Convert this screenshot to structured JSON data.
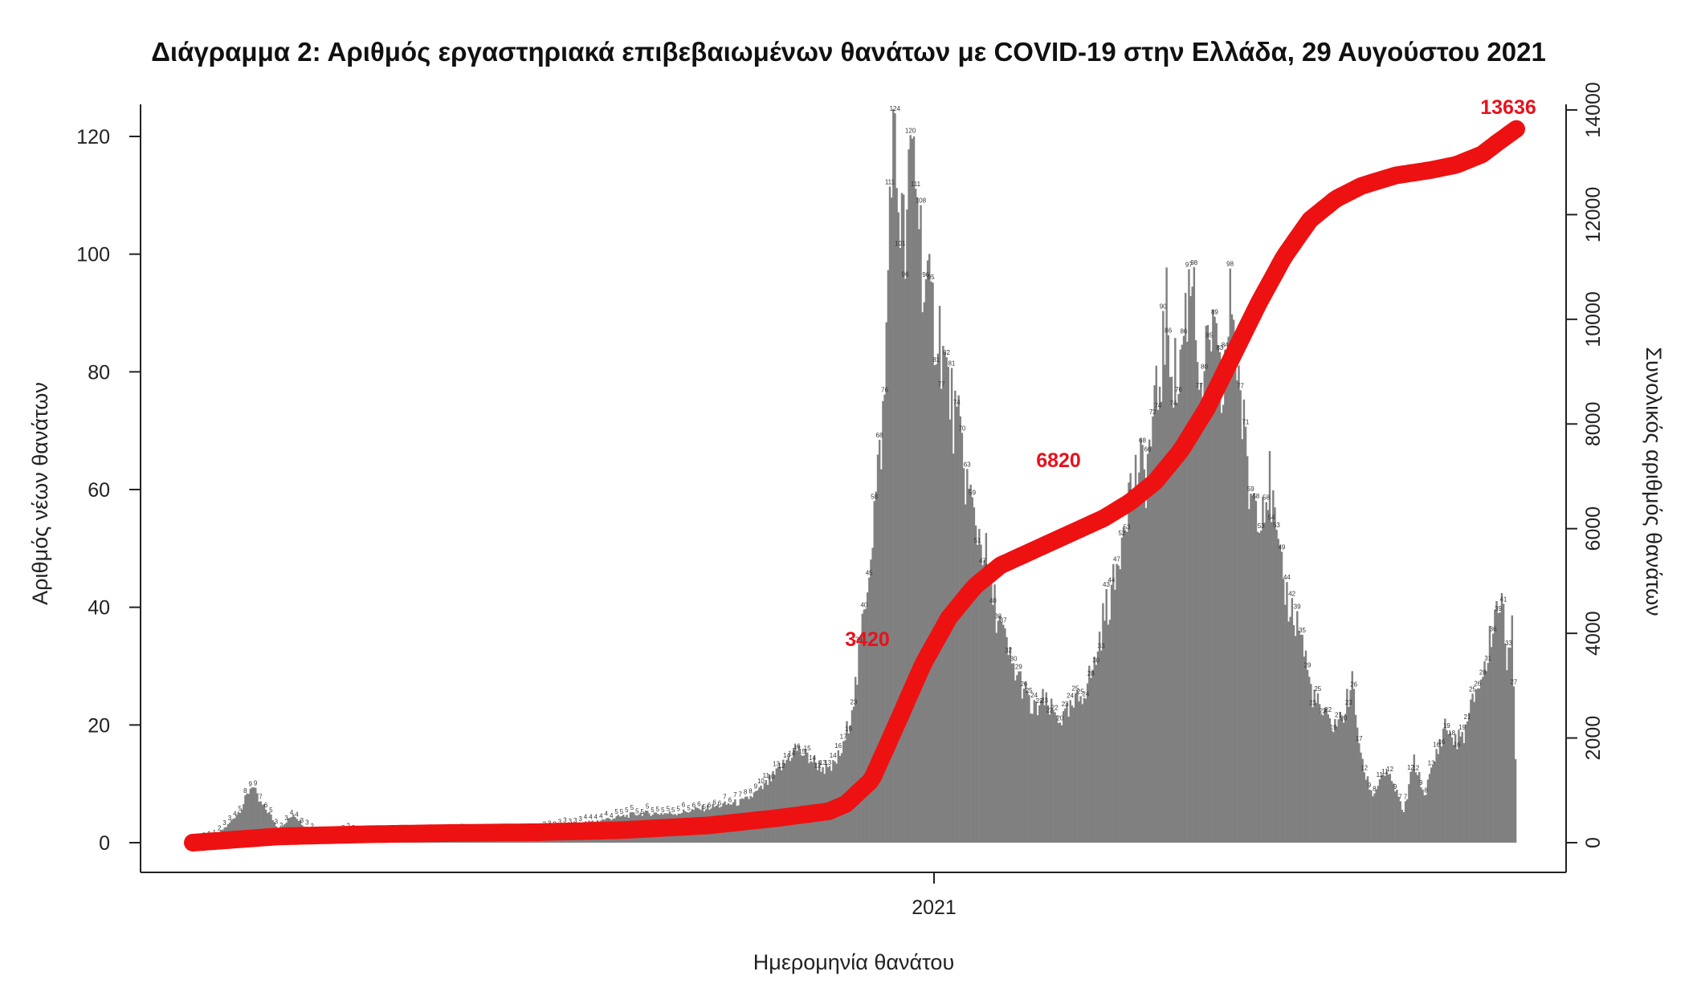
{
  "chart_data": {
    "type": "bar",
    "title": "Διάγραμμα 2: Αριθμός εργαστηριακά επιβεβαιωμένων θανάτων με COVID-19 στην Ελλάδα, 29 Αυγούστου 2021",
    "xlabel": "Ημερομηνία θανάτου",
    "ylabel": "Αριθμός νέων θανάτων",
    "y2label": "Συνολικός αριθμός θανάτων",
    "x_tick_labels": [
      "2021"
    ],
    "ylim": [
      0,
      120
    ],
    "y_ticks": [
      0,
      20,
      40,
      60,
      80,
      100,
      120
    ],
    "y2lim": [
      0,
      14000
    ],
    "y2_ticks": [
      0,
      2000,
      4000,
      6000,
      8000,
      10000,
      12000,
      14000
    ],
    "grid": false,
    "series": [
      {
        "type": "bar",
        "color": "#808080",
        "keyframes": [
          [
            0,
            0
          ],
          [
            12,
            1
          ],
          [
            20,
            3
          ],
          [
            28,
            6
          ],
          [
            34,
            10
          ],
          [
            38,
            7
          ],
          [
            44,
            5
          ],
          [
            50,
            2
          ],
          [
            58,
            5
          ],
          [
            64,
            3
          ],
          [
            75,
            1
          ],
          [
            90,
            2
          ],
          [
            100,
            1
          ],
          [
            120,
            1
          ],
          [
            140,
            1
          ],
          [
            160,
            2
          ],
          [
            180,
            1
          ],
          [
            200,
            2
          ],
          [
            220,
            3
          ],
          [
            240,
            4
          ],
          [
            260,
            5
          ],
          [
            280,
            5
          ],
          [
            300,
            6
          ],
          [
            320,
            7
          ],
          [
            330,
            9
          ],
          [
            340,
            12
          ],
          [
            350,
            16
          ],
          [
            360,
            14
          ],
          [
            370,
            12
          ],
          [
            378,
            16
          ],
          [
            386,
            28
          ],
          [
            392,
            45
          ],
          [
            398,
            62
          ],
          [
            402,
            75
          ],
          [
            406,
            121
          ],
          [
            410,
            110
          ],
          [
            414,
            100
          ],
          [
            418,
            119
          ],
          [
            421,
            112
          ],
          [
            425,
            95
          ],
          [
            429,
            90
          ],
          [
            434,
            87
          ],
          [
            438,
            79
          ],
          [
            442,
            73
          ],
          [
            446,
            68
          ],
          [
            450,
            61
          ],
          [
            454,
            55
          ],
          [
            460,
            50
          ],
          [
            464,
            43
          ],
          [
            470,
            36
          ],
          [
            476,
            30
          ],
          [
            482,
            27
          ],
          [
            488,
            22
          ],
          [
            494,
            24
          ],
          [
            500,
            22
          ],
          [
            506,
            21
          ],
          [
            512,
            23
          ],
          [
            518,
            26
          ],
          [
            524,
            30
          ],
          [
            530,
            39
          ],
          [
            536,
            44
          ],
          [
            542,
            58
          ],
          [
            548,
            62
          ],
          [
            554,
            63
          ],
          [
            560,
            74
          ],
          [
            566,
            89
          ],
          [
            572,
            77
          ],
          [
            578,
            92
          ],
          [
            582,
            99
          ],
          [
            586,
            72
          ],
          [
            592,
            88
          ],
          [
            598,
            75
          ],
          [
            604,
            93
          ],
          [
            608,
            79
          ],
          [
            614,
            60
          ],
          [
            620,
            58
          ],
          [
            626,
            61
          ],
          [
            632,
            46
          ],
          [
            638,
            40
          ],
          [
            644,
            36
          ],
          [
            650,
            26
          ],
          [
            656,
            22
          ],
          [
            662,
            20
          ],
          [
            668,
            21
          ],
          [
            674,
            27
          ],
          [
            680,
            13
          ],
          [
            686,
            8
          ],
          [
            692,
            12
          ],
          [
            698,
            10
          ],
          [
            704,
            5
          ],
          [
            710,
            14
          ],
          [
            716,
            8
          ],
          [
            722,
            14
          ],
          [
            728,
            20
          ],
          [
            734,
            17
          ],
          [
            740,
            19
          ],
          [
            746,
            26
          ],
          [
            752,
            30
          ],
          [
            756,
            38
          ],
          [
            760,
            42
          ],
          [
            764,
            32
          ],
          [
            767,
            39
          ],
          [
            769,
            13
          ],
          [
            770,
            0
          ]
        ]
      },
      {
        "type": "line",
        "color": "#ee1111",
        "keyframes": [
          [
            0,
            0
          ],
          [
            50,
            120
          ],
          [
            100,
            160
          ],
          [
            150,
            185
          ],
          [
            200,
            200
          ],
          [
            250,
            240
          ],
          [
            300,
            330
          ],
          [
            340,
            470
          ],
          [
            370,
            600
          ],
          [
            380,
            740
          ],
          [
            395,
            1200
          ],
          [
            410,
            2300
          ],
          [
            425,
            3420
          ],
          [
            440,
            4300
          ],
          [
            455,
            4900
          ],
          [
            470,
            5300
          ],
          [
            490,
            5600
          ],
          [
            510,
            5900
          ],
          [
            530,
            6200
          ],
          [
            545,
            6500
          ],
          [
            560,
            6900
          ],
          [
            575,
            7500
          ],
          [
            590,
            8300
          ],
          [
            605,
            9300
          ],
          [
            620,
            10300
          ],
          [
            635,
            11200
          ],
          [
            650,
            11900
          ],
          [
            665,
            12300
          ],
          [
            680,
            12550
          ],
          [
            700,
            12750
          ],
          [
            720,
            12850
          ],
          [
            735,
            12950
          ],
          [
            750,
            13150
          ],
          [
            760,
            13400
          ],
          [
            770,
            13636
          ]
        ]
      }
    ],
    "bar_labels": [
      "121",
      "119",
      "110",
      "112",
      "101",
      "99",
      "93",
      "88",
      "79",
      "73",
      "70",
      "62",
      "99",
      "92",
      "89",
      "88",
      "79",
      "77",
      "74",
      "63",
      "61",
      "55",
      "50",
      "44",
      "42",
      "40",
      "37",
      "31",
      "30",
      "27",
      "20",
      "16",
      "14",
      "12",
      "10",
      "9",
      "8",
      "7",
      "6",
      "5",
      "4",
      "3",
      "2",
      "1",
      "0"
    ],
    "cumulative_labels": [
      "3420",
      "6820",
      "13636"
    ]
  }
}
